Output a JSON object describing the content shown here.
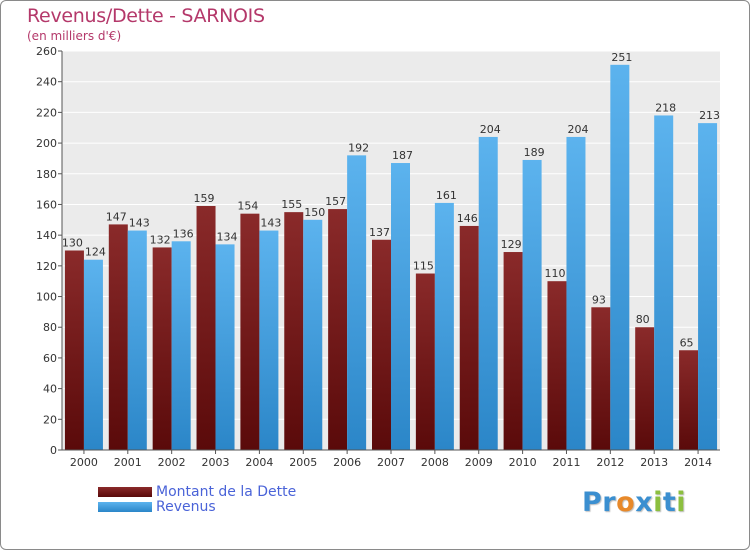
{
  "header": {
    "title": "Revenus/Dette - SARNOIS",
    "subtitle": "(en milliers d'€)"
  },
  "legend": {
    "items": [
      {
        "label": "Montant de la Dette",
        "color": "#7a1c1c"
      },
      {
        "label": "Revenus",
        "color": "#3d9ee0"
      }
    ]
  },
  "logo": {
    "text": "Proxiti",
    "letters": [
      {
        "ch": "P",
        "color": "#3b8fd0"
      },
      {
        "ch": "r",
        "color": "#3b8fd0"
      },
      {
        "ch": "o",
        "color": "#e8892a"
      },
      {
        "ch": "x",
        "color": "#3b8fd0"
      },
      {
        "ch": "i",
        "color": "#8cbf3f"
      },
      {
        "ch": "t",
        "color": "#3b8fd0"
      },
      {
        "ch": "i",
        "color": "#8cbf3f"
      }
    ]
  },
  "chart_data": {
    "type": "bar",
    "title": "Revenus/Dette - SARNOIS",
    "subtitle": "(en milliers d'€)",
    "categories": [
      "2000",
      "2001",
      "2002",
      "2003",
      "2004",
      "2005",
      "2006",
      "2007",
      "2008",
      "2009",
      "2010",
      "2011",
      "2012",
      "2013",
      "2014"
    ],
    "series": [
      {
        "name": "Montant de la Dette",
        "color": "#7a1c1c",
        "values": [
          130,
          147,
          132,
          159,
          154,
          155,
          157,
          137,
          115,
          146,
          129,
          110,
          93,
          80,
          65
        ]
      },
      {
        "name": "Revenus",
        "color": "#3d9ee0",
        "values": [
          124,
          143,
          136,
          134,
          143,
          150,
          192,
          187,
          161,
          204,
          189,
          204,
          251,
          218,
          213
        ]
      }
    ],
    "ylim": [
      0,
      260
    ],
    "yticks": [
      0,
      20,
      40,
      60,
      80,
      100,
      120,
      140,
      160,
      180,
      200,
      220,
      240,
      260
    ],
    "grid": true,
    "legend_position": "bottom-left"
  }
}
